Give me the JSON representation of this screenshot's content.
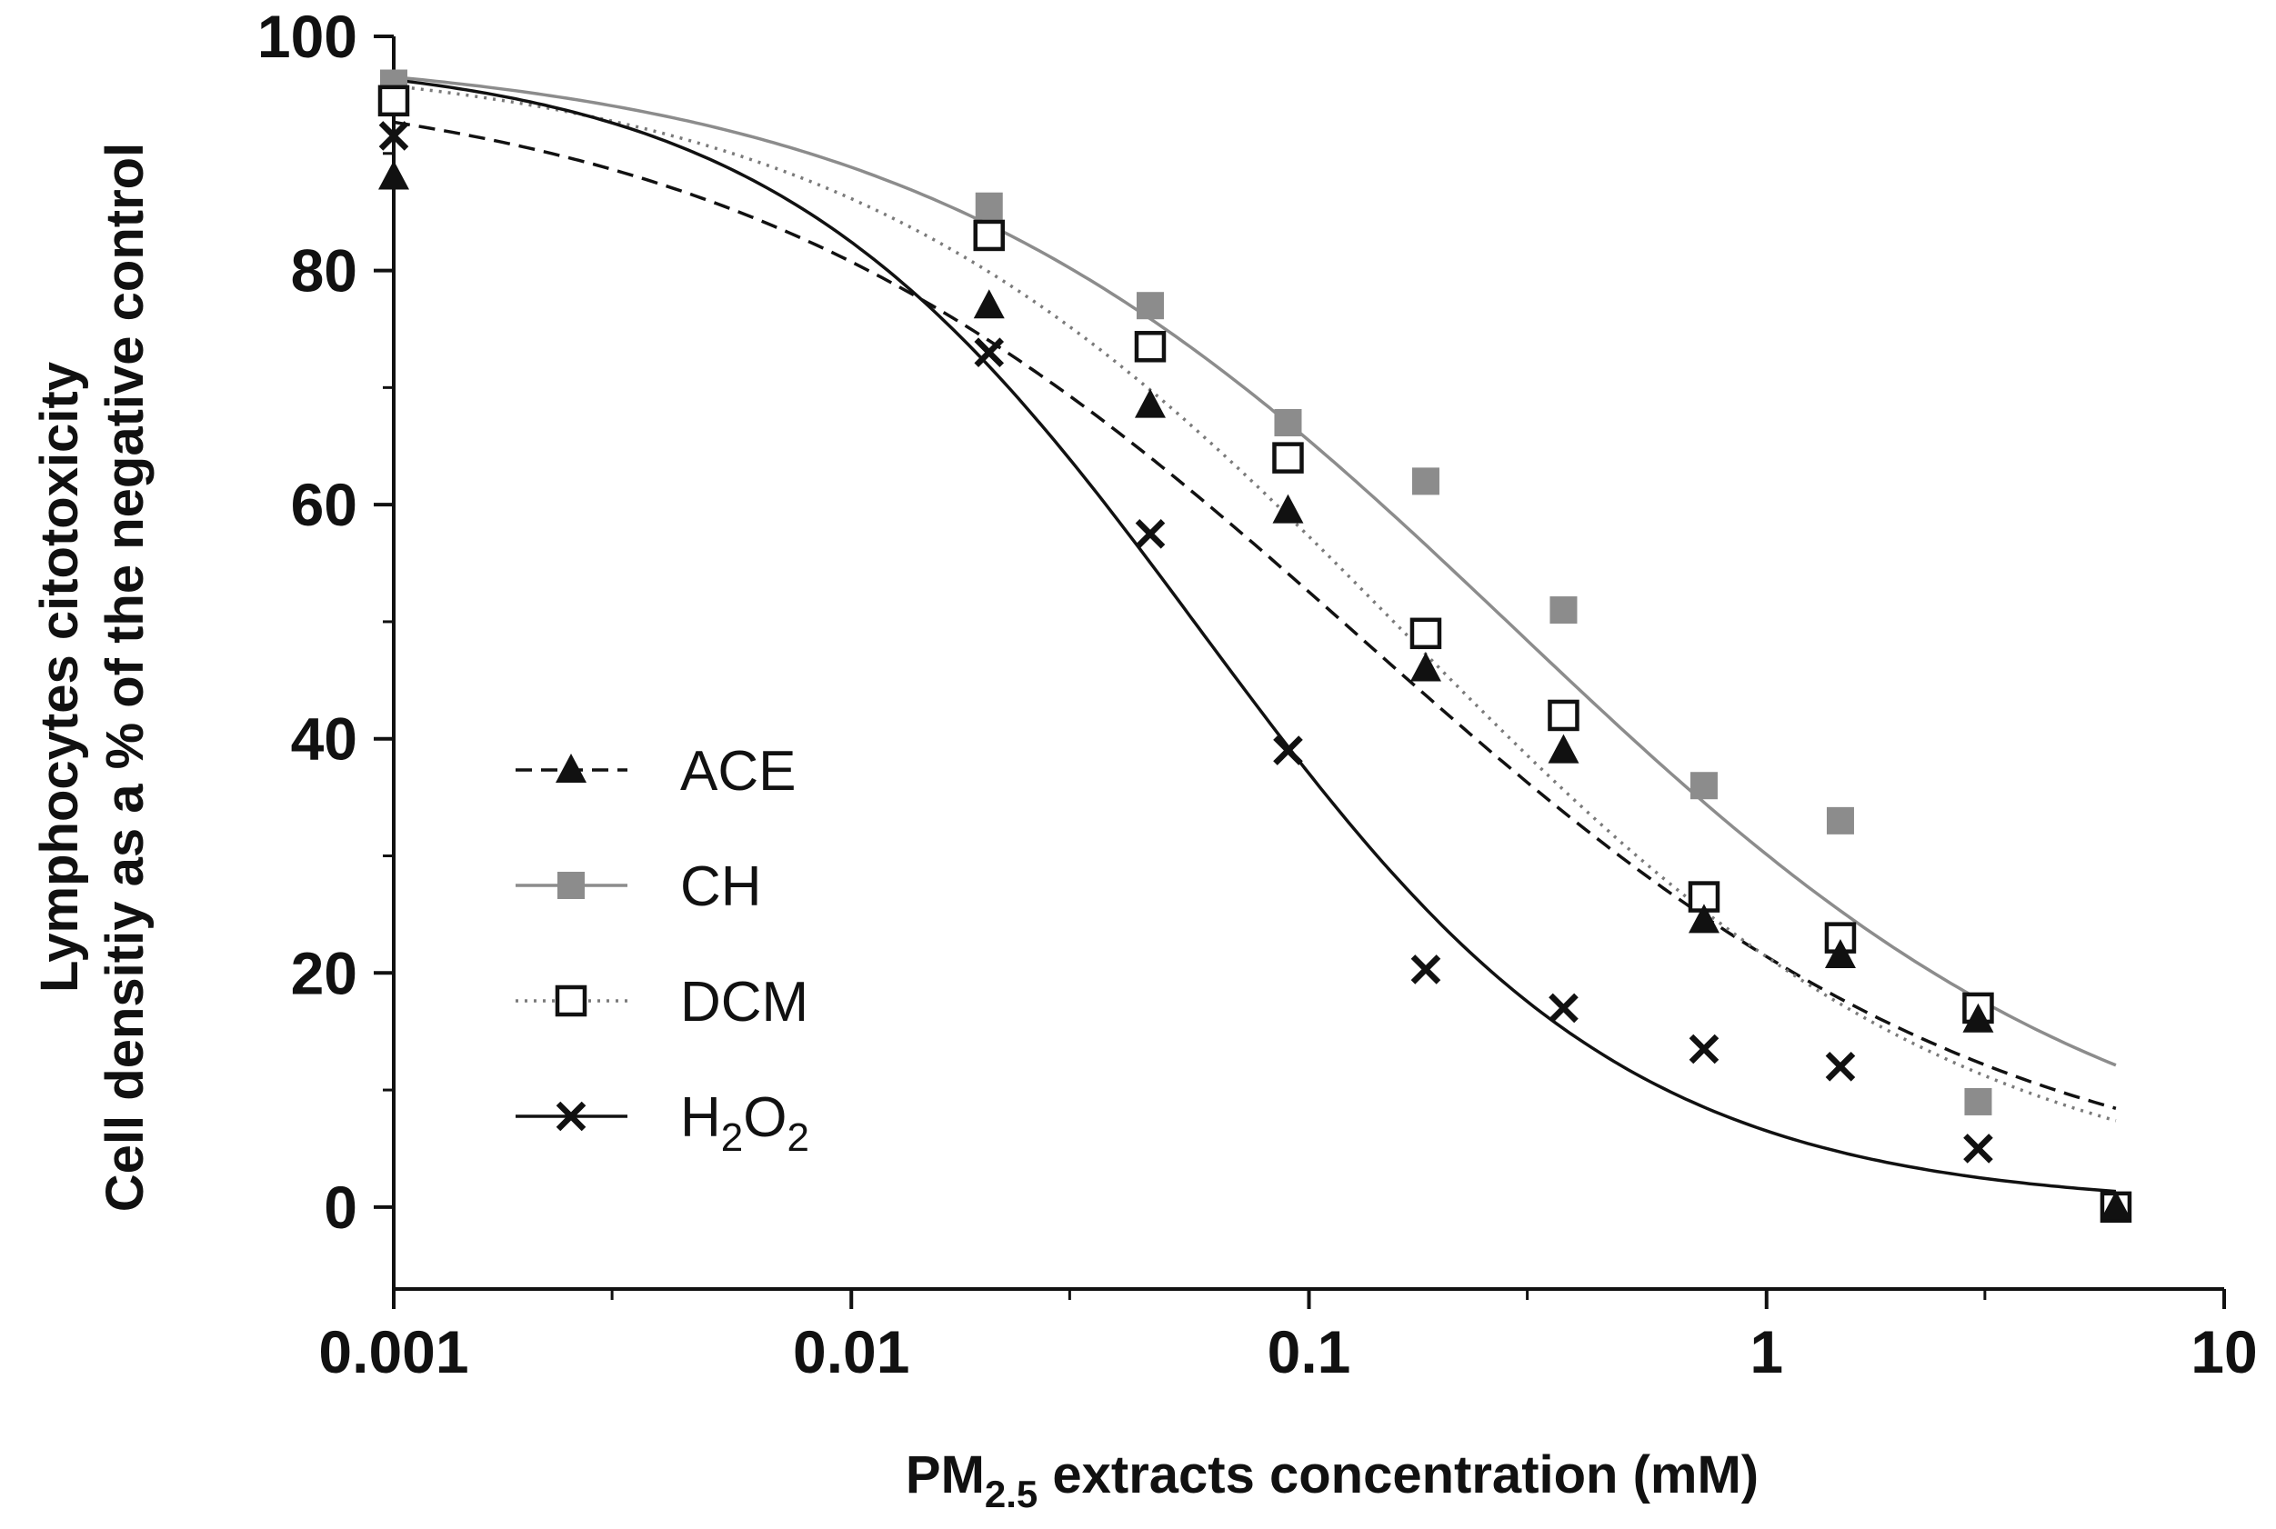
{
  "chart_data": {
    "type": "scatter",
    "x_scale": "log",
    "xlim": [
      0.001,
      10
    ],
    "ylim": [
      -7,
      100
    ],
    "grid": false,
    "legend_position": "center-left",
    "xlabel": {
      "prefix": "PM",
      "sub": "2.5",
      "suffix": " extracts concentration (mM)"
    },
    "ylabel_lines": [
      "Lymphocytes citotoxicity",
      "Cell densitiy as a % of the negative control"
    ],
    "x_ticks": [
      {
        "value": 0.001,
        "label": "0.001"
      },
      {
        "value": 0.01,
        "label": "0.01"
      },
      {
        "value": 0.1,
        "label": "0.1"
      },
      {
        "value": 1,
        "label": "1"
      },
      {
        "value": 10,
        "label": "10"
      }
    ],
    "y_ticks": [
      {
        "value": 0,
        "label": "0"
      },
      {
        "value": 20,
        "label": "20"
      },
      {
        "value": 40,
        "label": "40"
      },
      {
        "value": 60,
        "label": "60"
      },
      {
        "value": 80,
        "label": "80"
      },
      {
        "value": 100,
        "label": "100"
      }
    ],
    "series": [
      {
        "name": "ACE",
        "color": "#111111",
        "marker": "triangle",
        "line_style": "dashed",
        "x": [
          0.001,
          0.02,
          0.045,
          0.09,
          0.18,
          0.36,
          0.73,
          1.45,
          2.9,
          5.8
        ],
        "y": [
          88,
          77,
          68.5,
          59.5,
          46,
          39,
          24.5,
          21.5,
          16,
          0
        ],
        "fit": {
          "top": 97.2,
          "bottom": 0,
          "ec50": 0.13,
          "hill": 0.62
        }
      },
      {
        "name": "CH",
        "color": "#8c8c8c",
        "marker": "square-filled",
        "line_style": "solid",
        "x": [
          0.001,
          0.02,
          0.045,
          0.09,
          0.18,
          0.36,
          0.73,
          1.45,
          2.9,
          5.8
        ],
        "y": [
          96,
          85.5,
          77,
          67,
          62,
          51,
          36,
          33,
          9,
          0
        ],
        "fit": {
          "top": 99,
          "bottom": 0,
          "ec50": 0.28,
          "hill": 0.65
        }
      },
      {
        "name": "DCM",
        "color": "#111111",
        "marker": "square-open",
        "line_style": "dotted",
        "x": [
          0.001,
          0.02,
          0.045,
          0.09,
          0.18,
          0.36,
          0.73,
          1.45,
          2.9,
          5.8
        ],
        "y": [
          94.5,
          83,
          73.5,
          64,
          49,
          42,
          26.5,
          23,
          17,
          0
        ],
        "fit": {
          "top": 98.5,
          "bottom": 0,
          "ec50": 0.16,
          "hill": 0.7
        },
        "line_color": "#7a7a7a"
      },
      {
        "name": "H2O2",
        "label_main": "H",
        "label_sub1": "2",
        "label_mid": "O",
        "label_sub2": "2",
        "color": "#111111",
        "marker": "cross",
        "line_style": "solid",
        "x": [
          0.001,
          0.02,
          0.045,
          0.09,
          0.18,
          0.36,
          0.73,
          1.45,
          2.9
        ],
        "y": [
          91.5,
          73,
          57.5,
          39,
          20.3,
          17,
          13.5,
          12,
          5
        ],
        "fit": {
          "top": 98.5,
          "bottom": 0,
          "ec50": 0.058,
          "hill": 0.93
        }
      }
    ]
  }
}
